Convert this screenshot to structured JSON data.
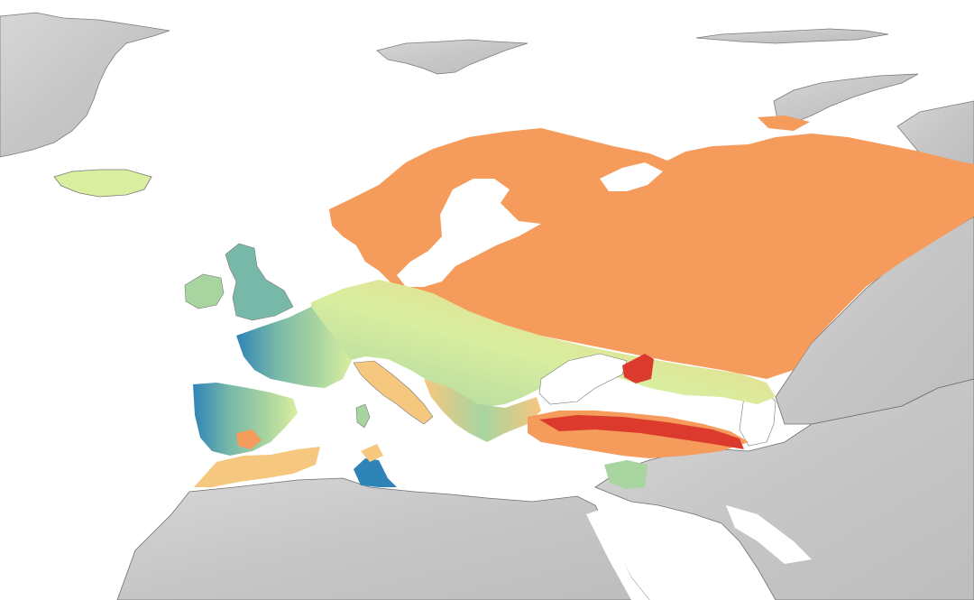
{
  "map": {
    "projection": "equirectangular-like",
    "basemap": "shaded-relief-grayscale",
    "legend": "none",
    "labels": "none"
  },
  "colors": {
    "sea": "#ffffff",
    "land_gray": "#c9c9c9",
    "land_gray_dark": "#b5b5b5",
    "border": "#6f6f6f",
    "scale_blue": "#2f84b7",
    "scale_teal": "#78b8a8",
    "scale_green": "#a8d4a0",
    "scale_yellowgreen": "#d9ee9f",
    "scale_peach": "#f6c77f",
    "scale_orange": "#f59b5b",
    "scale_red": "#dc3a2c"
  },
  "regions": {
    "greenland": "gray",
    "svalbard": "gray",
    "novaya_zemlya": "gray",
    "iceland": "yellowgreen",
    "ireland_britain": "teal",
    "scandinavia": "orange",
    "russia_north_east": "orange",
    "central_europe": "green",
    "france": "teal",
    "iberia": "teal",
    "italy": "peach",
    "balkans": "green",
    "turkey_caucasus": "red",
    "north_africa_coast": "peach",
    "north_africa_interior": "gray",
    "middle_east": "gray",
    "central_asia": "gray"
  }
}
